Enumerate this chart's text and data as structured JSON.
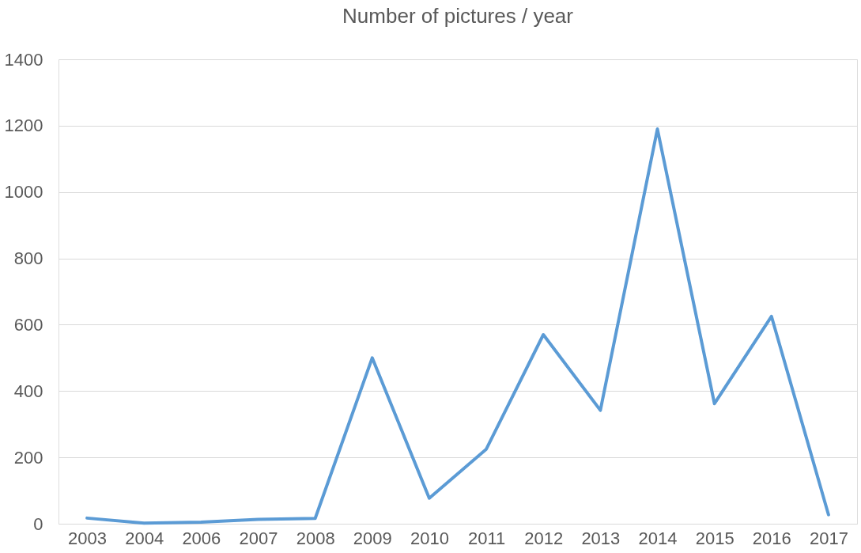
{
  "chart_data": {
    "type": "line",
    "title": "Number of pictures / year",
    "categories": [
      "2003",
      "2004",
      "2006",
      "2007",
      "2008",
      "2009",
      "2010",
      "2011",
      "2012",
      "2013",
      "2014",
      "2015",
      "2016",
      "2017"
    ],
    "series": [
      {
        "color": "#5b9bd5",
        "values": [
          17,
          2,
          5,
          13,
          16,
          500,
          77,
          225,
          570,
          342,
          1190,
          362,
          625,
          27
        ]
      }
    ],
    "ylim": [
      0,
      1400
    ],
    "yticks": [
      0,
      200,
      400,
      600,
      800,
      1000,
      1200,
      1400
    ],
    "grid": "y",
    "legend": false,
    "marker": "none",
    "line_style": "solid"
  }
}
